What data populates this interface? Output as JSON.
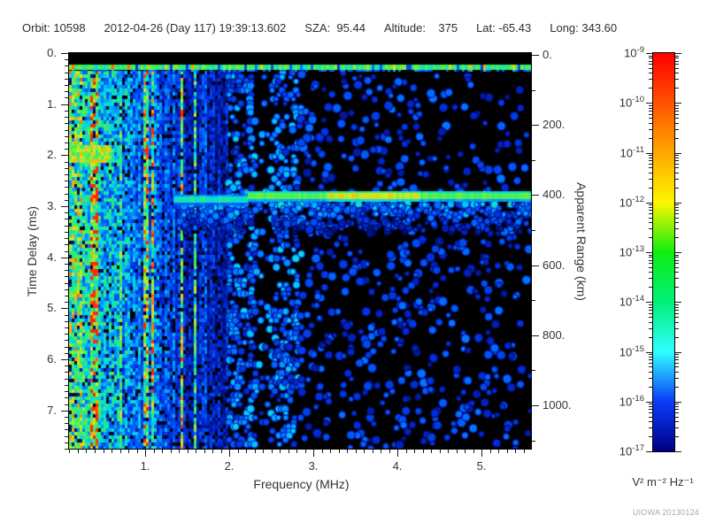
{
  "header": {
    "items": [
      "Orbit: 10598",
      "2012-04-26 (Day 117) 19:39:13.602",
      "SZA:  95.44",
      "Altitude:    375",
      "Lat: -65.43",
      "Long: 343.60"
    ]
  },
  "watermark": "UIOWA 20130124",
  "chart_data": {
    "type": "heatmap",
    "description": "Radar sounder ionogram: received spectral density vs sounding frequency and echo time delay",
    "xlabel": "Frequency (MHz)",
    "x_range": [
      0.095,
      5.585
    ],
    "x_tick_values": [
      1,
      2,
      3,
      4,
      5
    ],
    "x_tick_labels": [
      "1.",
      "2.",
      "3.",
      "4.",
      "5."
    ],
    "x_minor_step": 0.1,
    "ylabel": "Time Delay (ms)",
    "y_range": [
      0,
      7.75
    ],
    "y_tick_values": [
      0,
      1,
      2,
      3,
      4,
      5,
      6,
      7
    ],
    "y_tick_labels": [
      "0.",
      "1.",
      "2.",
      "3.",
      "4.",
      "5.",
      "6.",
      "7."
    ],
    "y_minor_step": 0.125,
    "y2label": "Apparent Range (km)",
    "y2_tick_values": [
      0,
      200,
      400,
      600,
      800,
      1000
    ],
    "y2_tick_labels": [
      "0.",
      "200.",
      "400.",
      "600.",
      "800.",
      "1000."
    ],
    "y2_minor_step": 100,
    "colorbar": {
      "scale": "log",
      "unit": "V² m⁻² Hz⁻¹",
      "exponents": [
        -9,
        -10,
        -11,
        -12,
        -13,
        -14,
        -15,
        -16,
        -17
      ],
      "value_range_top": "1e-9",
      "value_range_bottom": "1e-17",
      "gradient_stops": [
        {
          "pos": 0.0,
          "color": "#ff0000"
        },
        {
          "pos": 0.125,
          "color": "#ff5200"
        },
        {
          "pos": 0.25,
          "color": "#ffa600"
        },
        {
          "pos": 0.375,
          "color": "#fef600"
        },
        {
          "pos": 0.5,
          "color": "#10ee10"
        },
        {
          "pos": 0.625,
          "color": "#00f07a"
        },
        {
          "pos": 0.75,
          "color": "#30ffff"
        },
        {
          "pos": 0.875,
          "color": "#0a3cfa"
        },
        {
          "pos": 1.0,
          "color": "#000082"
        }
      ]
    },
    "features": [
      {
        "name": "transmitter-pulse-band",
        "time_ms": 0.3,
        "freq_mhz": [
          0.1,
          5.58
        ],
        "appearance": "cyan-green horizontal stripe across all frequencies"
      },
      {
        "name": "ionospheric-echo-trace",
        "time_ms": 2.7,
        "apparent_range_km": 400,
        "freq_mhz": [
          1.3,
          5.58
        ],
        "peak_freq_mhz": [
          3.1,
          4.1
        ],
        "appearance": "green horizontal trace, brightest yellow-green near 3.5 MHz, diffuse cyan fuzz below"
      },
      {
        "name": "low-frequency-noise",
        "freq_mhz": [
          0.1,
          1.9
        ],
        "time_ms": [
          0.3,
          7.75
        ],
        "appearance": "dense vertical cyan/green interference striping, strongest below 0.5 MHz"
      },
      {
        "name": "interference-blob",
        "time_ms": 1.85,
        "freq_mhz": [
          0.1,
          0.6
        ],
        "appearance": "bright green-yellow horizontal patch at left edge"
      },
      {
        "name": "background-speckle",
        "appearance": "scattered faint blue noise blobs over black background, sparser at high frequency"
      }
    ]
  }
}
